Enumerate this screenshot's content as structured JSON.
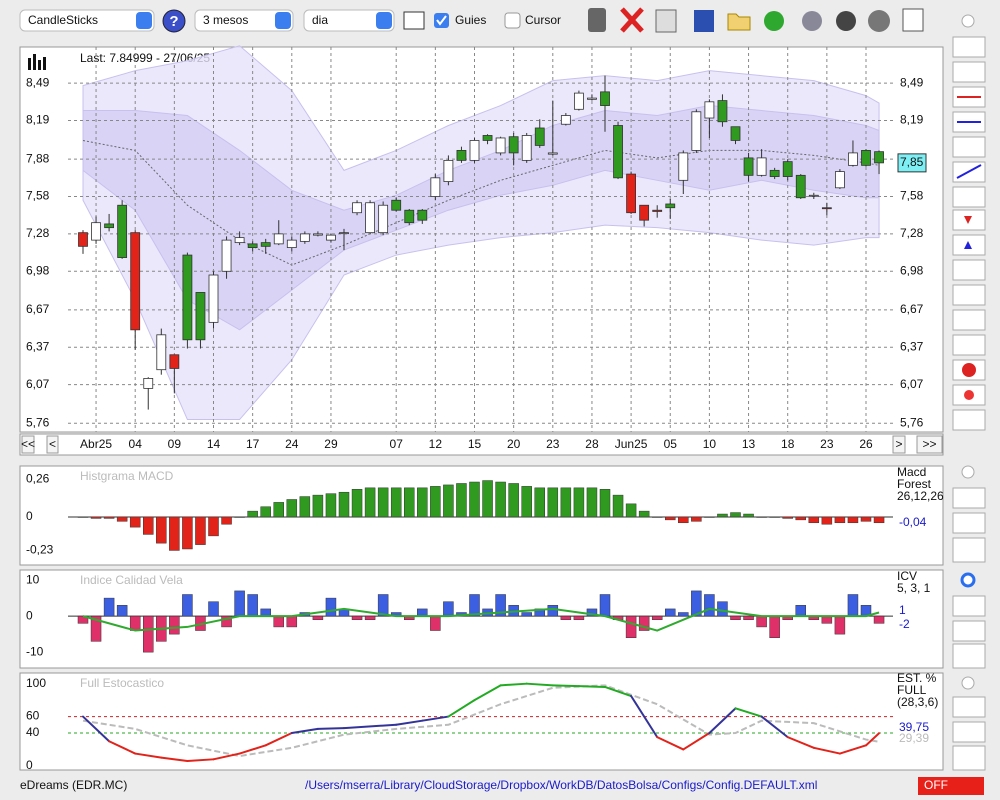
{
  "toolbar": {
    "chart_type": "CandleSticks",
    "period": "3 mesos",
    "interval": "dia",
    "guides": "Guies",
    "cursor": "Cursor"
  },
  "status": {
    "symbol": "eDreams (EDR.MC)",
    "path": "/Users/mserra/Library/CloudStorage/Dropbox/WorkDB/DatosBolsa/Configs/Config.DEFAULT.xml",
    "mode": "OFF"
  },
  "chart_data": [
    {
      "type": "candlestick",
      "title": "Last: 7.84999 - 27/06/25",
      "last_label": "7,85",
      "ylim": [
        5.69,
        8.78
      ],
      "yticks": [
        {
          "value": 8.49,
          "label": "8,49"
        },
        {
          "value": 8.19,
          "label": "8,19"
        },
        {
          "value": 7.88,
          "label": "7,88"
        },
        {
          "value": 7.58,
          "label": "7,58"
        },
        {
          "value": 7.28,
          "label": "7,28"
        },
        {
          "value": 6.98,
          "label": "6,98"
        },
        {
          "value": 6.67,
          "label": "6,67"
        },
        {
          "value": 6.37,
          "label": "6,37"
        },
        {
          "value": 6.07,
          "label": "6,07"
        },
        {
          "value": 5.76,
          "label": "5,76"
        }
      ],
      "xticks": [
        {
          "value": 1,
          "label": "Abr25"
        },
        {
          "value": 4,
          "label": "04"
        },
        {
          "value": 7,
          "label": "09"
        },
        {
          "value": 10,
          "label": "14"
        },
        {
          "value": 13,
          "label": "17"
        },
        {
          "value": 16,
          "label": "24"
        },
        {
          "value": 19,
          "label": "29"
        },
        {
          "value": 24,
          "label": "07"
        },
        {
          "value": 27,
          "label": "12"
        },
        {
          "value": 30,
          "label": "15"
        },
        {
          "value": 33,
          "label": "20"
        },
        {
          "value": 36,
          "label": "23"
        },
        {
          "value": 39,
          "label": "28"
        },
        {
          "value": 42,
          "label": "Jun25"
        },
        {
          "value": 45,
          "label": "05"
        },
        {
          "value": 48,
          "label": "10"
        },
        {
          "value": 51,
          "label": "13"
        },
        {
          "value": 54,
          "label": "18"
        },
        {
          "value": 57,
          "label": "23"
        },
        {
          "value": 60,
          "label": "26"
        }
      ],
      "nav": [
        "<<",
        "<",
        ">",
        ">>"
      ],
      "open": [
        7.29,
        7.23,
        7.36,
        7.51,
        7.29,
        6.12,
        6.19,
        6.31,
        6.43,
        6.43,
        6.57,
        6.98,
        7.21,
        7.17,
        7.18,
        7.2,
        7.17,
        7.22,
        7.27,
        7.23,
        7.29,
        7.45,
        7.29,
        7.29,
        7.55,
        7.47,
        7.47,
        7.58,
        7.7,
        7.95,
        7.87,
        8.07,
        7.93,
        8.06,
        7.87,
        8.13,
        7.93,
        8.16,
        8.28,
        8.36,
        8.42,
        8.15,
        7.76,
        7.51,
        7.47,
        7.52,
        7.71,
        7.95,
        8.21,
        8.35,
        8.14,
        7.89,
        7.75,
        7.79,
        7.86,
        7.75,
        7.59,
        7.49,
        7.65,
        7.83,
        7.95,
        7.94
      ],
      "high": [
        7.31,
        7.42,
        7.44,
        7.55,
        7.31,
        6.13,
        6.52,
        6.31,
        7.13,
        6.81,
        6.98,
        7.26,
        7.3,
        7.22,
        7.24,
        7.39,
        7.26,
        7.3,
        7.3,
        7.28,
        7.32,
        7.55,
        7.55,
        7.54,
        7.57,
        7.48,
        7.48,
        7.76,
        7.91,
        7.98,
        8.05,
        8.08,
        8.06,
        8.09,
        8.09,
        8.2,
        8.35,
        8.25,
        8.43,
        8.4,
        8.55,
        8.18,
        7.78,
        7.51,
        7.51,
        7.56,
        7.95,
        8.28,
        8.36,
        8.4,
        8.14,
        7.93,
        7.96,
        7.81,
        7.88,
        7.76,
        7.61,
        7.53,
        7.8,
        8.03,
        7.96,
        7.95
      ],
      "low": [
        7.12,
        7.2,
        7.3,
        7.08,
        6.35,
        5.87,
        6.15,
        6.0,
        6.36,
        6.36,
        6.52,
        6.92,
        7.19,
        7.14,
        7.12,
        7.19,
        7.14,
        7.2,
        7.26,
        7.21,
        7.15,
        7.43,
        7.28,
        7.27,
        7.46,
        7.35,
        7.36,
        7.55,
        7.67,
        7.85,
        7.85,
        8.0,
        7.91,
        7.83,
        7.85,
        7.97,
        7.91,
        8.15,
        8.27,
        8.35,
        8.1,
        7.72,
        7.44,
        7.34,
        7.41,
        7.4,
        7.6,
        7.93,
        8.05,
        8.14,
        8.0,
        7.7,
        7.74,
        7.72,
        7.71,
        7.56,
        7.56,
        7.43,
        7.64,
        7.82,
        7.82,
        7.76
      ],
      "close": [
        7.18,
        7.37,
        7.33,
        7.09,
        6.51,
        6.04,
        6.47,
        6.2,
        7.11,
        6.81,
        6.95,
        7.23,
        7.25,
        7.2,
        7.21,
        7.28,
        7.23,
        7.28,
        7.28,
        7.27,
        7.29,
        7.53,
        7.53,
        7.51,
        7.47,
        7.37,
        7.39,
        7.73,
        7.87,
        7.87,
        8.03,
        8.03,
        8.05,
        7.93,
        8.07,
        7.99,
        7.92,
        8.23,
        8.41,
        8.37,
        8.31,
        7.73,
        7.45,
        7.39,
        7.46,
        7.49,
        7.93,
        8.26,
        8.34,
        8.18,
        8.03,
        7.75,
        7.89,
        7.74,
        7.74,
        7.57,
        7.59,
        7.49,
        7.78,
        7.93,
        7.83,
        7.85
      ],
      "fills": [
        "#e2231a",
        "#ffffff",
        "#2f9a1f",
        "#2f9a1f",
        "#e2231a",
        "#ffffff",
        "#ffffff",
        "#e2231a",
        "#2f9a1f",
        "#2f9a1f",
        "#ffffff",
        "#ffffff",
        "#ffffff",
        "#2f9a1f",
        "#2f9a1f",
        "#ffffff",
        "#ffffff",
        "#ffffff",
        "#ffffff",
        "#ffffff",
        "#ffffff",
        "#ffffff",
        "#ffffff",
        "#ffffff",
        "#2f9a1f",
        "#2f9a1f",
        "#2f9a1f",
        "#ffffff",
        "#ffffff",
        "#2f9a1f",
        "#ffffff",
        "#2f9a1f",
        "#ffffff",
        "#2f9a1f",
        "#ffffff",
        "#2f9a1f",
        "#ffffff",
        "#ffffff",
        "#ffffff",
        "#ffffff",
        "#2f9a1f",
        "#2f9a1f",
        "#e2231a",
        "#e2231a",
        "#e2231a",
        "#2f9a1f",
        "#ffffff",
        "#ffffff",
        "#ffffff",
        "#2f9a1f",
        "#2f9a1f",
        "#2f9a1f",
        "#ffffff",
        "#2f9a1f",
        "#2f9a1f",
        "#2f9a1f",
        "#ffffff",
        "#e2231a",
        "#ffffff",
        "#ffffff",
        "#2f9a1f",
        "#2f9a1f"
      ],
      "bands": {
        "x": [
          0,
          4,
          8,
          12,
          16,
          20,
          24,
          28,
          32,
          36,
          40,
          44,
          48,
          52,
          56,
          60,
          61
        ],
        "outer_upper": [
          8.47,
          8.59,
          8.67,
          8.79,
          8.43,
          7.79,
          7.95,
          8.15,
          8.31,
          8.51,
          8.55,
          8.51,
          8.59,
          8.55,
          8.51,
          8.39,
          8.33
        ],
        "outer_lower": [
          7.55,
          6.75,
          5.79,
          5.79,
          6.27,
          6.95,
          7.11,
          7.19,
          7.25,
          7.29,
          7.35,
          7.33,
          7.29,
          7.23,
          7.19,
          7.25,
          7.25
        ],
        "inner_upper": [
          8.27,
          8.27,
          8.23,
          7.95,
          7.63,
          7.47,
          7.59,
          7.79,
          7.95,
          8.15,
          8.27,
          8.23,
          8.31,
          8.27,
          8.23,
          8.15,
          8.11
        ],
        "inner_lower": [
          7.79,
          7.47,
          6.75,
          6.51,
          6.83,
          7.15,
          7.31,
          7.47,
          7.59,
          7.67,
          7.79,
          7.71,
          7.63,
          7.71,
          7.63,
          7.57,
          7.57
        ],
        "middle": [
          8.03,
          7.95,
          7.51,
          7.23,
          7.03,
          7.19,
          7.37,
          7.55,
          7.71,
          7.83,
          7.95,
          7.89,
          7.95,
          7.95,
          7.91,
          7.85,
          7.83
        ],
        "outer_color": "#e6e2fa",
        "inner_color": "#d4cdf5",
        "middle_color": "#666666"
      }
    },
    {
      "type": "histogram",
      "title": "Histgrama MACD",
      "legend": [
        "Macd",
        "Forest"
      ],
      "params": "26,12,26",
      "last_label": "-0,04",
      "ylim": [
        -0.33,
        0.35
      ],
      "yticks": [
        {
          "value": 0.26,
          "label": "0,26"
        },
        0,
        {
          "value": -0.23,
          "label": "-0,23"
        }
      ],
      "pos_color": "#2f9a1f",
      "neg_color": "#e2231a",
      "values": [
        0,
        -0.01,
        -0.01,
        -0.03,
        -0.07,
        -0.12,
        -0.18,
        -0.23,
        -0.22,
        -0.19,
        -0.13,
        -0.05,
        0,
        0.04,
        0.07,
        0.1,
        0.12,
        0.14,
        0.15,
        0.16,
        0.17,
        0.19,
        0.2,
        0.2,
        0.2,
        0.2,
        0.2,
        0.21,
        0.22,
        0.23,
        0.24,
        0.25,
        0.24,
        0.23,
        0.21,
        0.2,
        0.2,
        0.2,
        0.2,
        0.2,
        0.19,
        0.15,
        0.09,
        0.04,
        0,
        -0.02,
        -0.04,
        -0.03,
        0,
        0.02,
        0.03,
        0.02,
        0,
        0,
        -0.01,
        -0.02,
        -0.04,
        -0.05,
        -0.04,
        -0.04,
        -0.03,
        -0.04
      ]
    },
    {
      "type": "histogram",
      "title": "Indice Calidad Vela",
      "legend": [
        "ICV"
      ],
      "params": "5, 3, 1",
      "ylim": [
        -14.4,
        12.8
      ],
      "yticks": [
        10,
        0,
        -10
      ],
      "pos_color": "#3b5fe0",
      "neg_color": "#e0306a",
      "values": [
        -2,
        -7,
        5,
        3,
        -4,
        -10,
        -7,
        -5,
        6,
        -4,
        4,
        -3,
        7,
        6,
        2,
        -3,
        -3,
        1,
        -1,
        5,
        2,
        -1,
        -1,
        6,
        1,
        -1,
        2,
        -4,
        4,
        1,
        6,
        2,
        6,
        3,
        1,
        2,
        3,
        -1,
        -1,
        2,
        6,
        -1,
        -6,
        -4,
        -1,
        2,
        1,
        7,
        6,
        4,
        -1,
        -1,
        -3,
        -6,
        -1,
        3,
        -1,
        -2,
        -5,
        6,
        3,
        -2
      ],
      "signal": {
        "x": [
          0,
          4,
          8,
          12,
          16,
          20,
          24,
          28,
          32,
          36,
          40,
          44,
          48,
          52,
          56,
          60,
          61
        ],
        "values": [
          0,
          -4,
          -3,
          0,
          0,
          2,
          0,
          0,
          1,
          2,
          0,
          -4,
          2,
          0,
          0,
          0,
          1
        ],
        "color": "#2faa2f"
      }
    },
    {
      "type": "stochastic",
      "title": "Full Estocastico",
      "legend": [
        "EST. %",
        "FULL"
      ],
      "params": "(28,3,6)",
      "ylim": [
        -5,
        113
      ],
      "yticks": [
        100,
        60,
        40,
        0
      ],
      "guides": [
        60,
        40
      ],
      "guide_colors": [
        "#cc2222",
        "#22aa22"
      ],
      "k": {
        "x": [
          0,
          2,
          4,
          6,
          8,
          10,
          12,
          14,
          16,
          18,
          20,
          24,
          26,
          28,
          30,
          32,
          34,
          36,
          38,
          40,
          42,
          44,
          46,
          48,
          50,
          52,
          54,
          56,
          58,
          60,
          61
        ],
        "values": [
          60,
          30,
          15,
          10,
          6,
          8,
          15,
          25,
          40,
          45,
          46,
          50,
          55,
          60,
          80,
          98,
          100,
          98,
          97,
          96,
          85,
          35,
          20,
          40,
          70,
          60,
          35,
          22,
          15,
          25,
          39.75
        ],
        "high_color": "#22aa22",
        "mid_color": "#333399",
        "low_color": "#e2231a",
        "last_label": "39,75",
        "label_color": "#1a1acc"
      },
      "d": {
        "x": [
          0,
          4,
          8,
          12,
          16,
          20,
          24,
          28,
          32,
          36,
          40,
          44,
          48,
          50,
          52,
          56,
          60,
          61
        ],
        "values": [
          55,
          45,
          25,
          12,
          22,
          38,
          45,
          50,
          75,
          95,
          98,
          75,
          38,
          40,
          55,
          52,
          32,
          29.39
        ],
        "color": "#bbbbbb",
        "last_label": "29,39"
      }
    }
  ]
}
